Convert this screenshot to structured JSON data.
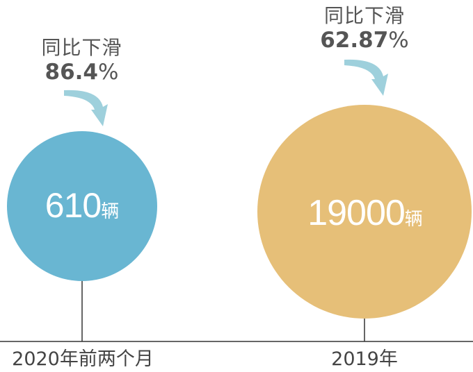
{
  "chart_data": {
    "type": "bubble",
    "title": "",
    "categories": [
      "2020年前两个月",
      "2019年"
    ],
    "values": [
      610,
      19000
    ],
    "unit": "辆",
    "annotations": [
      {
        "text": "同比下滑",
        "value": "86.4",
        "unit": "%"
      },
      {
        "text": "同比下滑",
        "value": "62.87",
        "unit": "%"
      }
    ],
    "colors": [
      "#69b6d2",
      "#e6bf78"
    ],
    "arrow_color": "#9ed0dc",
    "axis_color": "#333333"
  }
}
